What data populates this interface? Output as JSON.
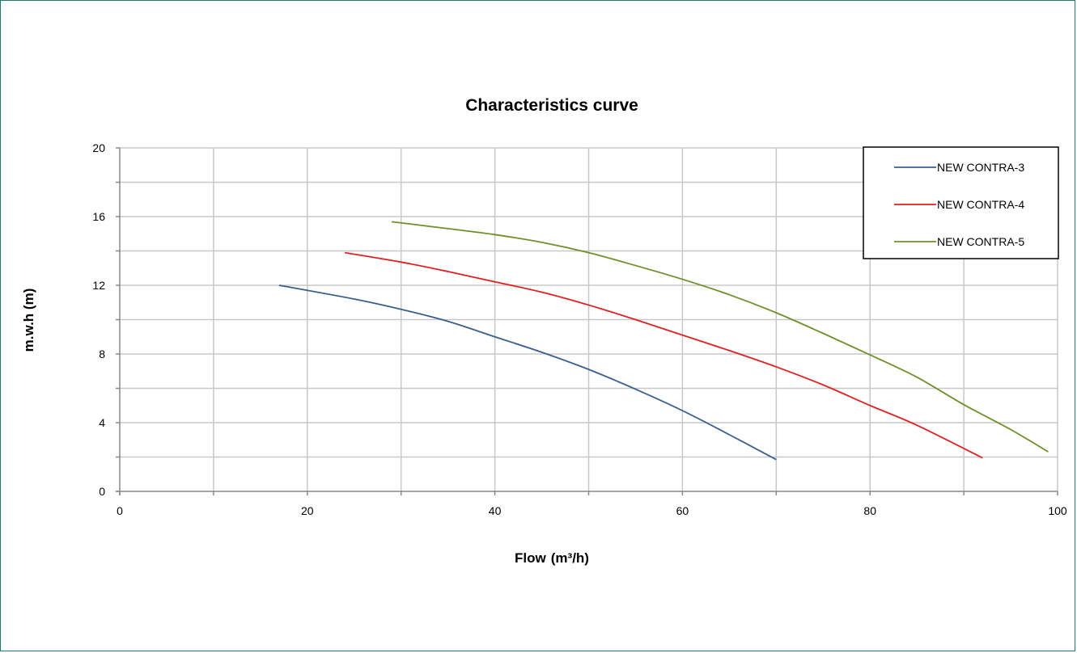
{
  "chart_data": {
    "type": "line",
    "title": "Characteristics curve",
    "xlabel": "Flow",
    "xlabel_unit": "(m³/h)",
    "ylabel": "m.w.h (m)",
    "xlim": [
      0,
      100
    ],
    "ylim": [
      0,
      20
    ],
    "xticks": [
      "0",
      "20",
      "40",
      "60",
      "80",
      "100"
    ],
    "yticks": [
      "0",
      "4",
      "8",
      "12",
      "16",
      "20"
    ],
    "grid": true,
    "legend_position": "top-right",
    "series": [
      {
        "name": "NEW CONTRA-3",
        "color": "#3a5f8f",
        "x": [
          17,
          25,
          30,
          35,
          40,
          45,
          50,
          55,
          60,
          65,
          70
        ],
        "y": [
          12.0,
          11.2,
          10.6,
          9.9,
          9.0,
          8.1,
          7.1,
          5.95,
          4.7,
          3.3,
          1.85
        ]
      },
      {
        "name": "NEW CONTRA-4",
        "color": "#e02020",
        "x": [
          24,
          30,
          35,
          40,
          45,
          50,
          55,
          60,
          65,
          70,
          75,
          80,
          85,
          92
        ],
        "y": [
          13.9,
          13.35,
          12.8,
          12.2,
          11.6,
          10.85,
          10.0,
          9.1,
          8.2,
          7.25,
          6.2,
          5.0,
          3.85,
          1.95
        ]
      },
      {
        "name": "NEW CONTRA-5",
        "color": "#6f8f2a",
        "x": [
          29,
          35,
          40,
          45,
          50,
          55,
          60,
          65,
          70,
          75,
          80,
          85,
          90,
          95,
          99
        ],
        "y": [
          15.7,
          15.3,
          14.95,
          14.5,
          13.9,
          13.15,
          12.35,
          11.45,
          10.4,
          9.2,
          7.95,
          6.65,
          5.05,
          3.6,
          2.3
        ]
      }
    ]
  }
}
